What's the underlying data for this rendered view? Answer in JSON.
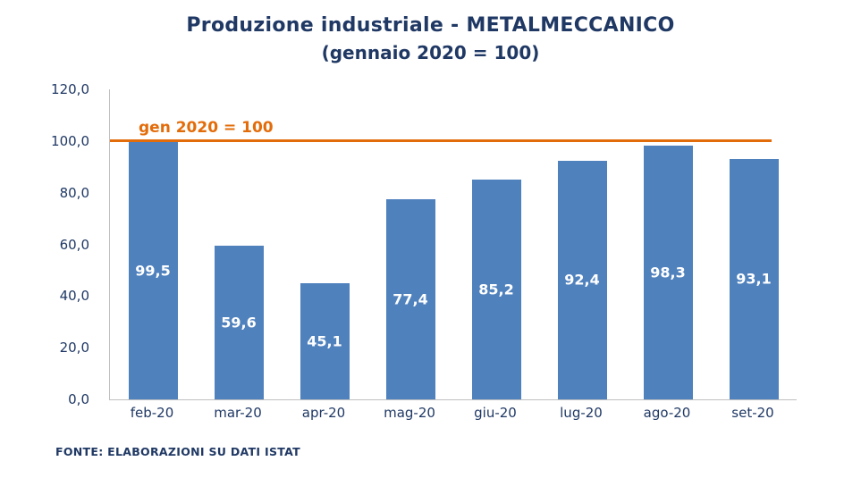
{
  "header": {
    "title": "Produzione industriale - METALMECCANICO",
    "subtitle": "(gennaio 2020 = 100)"
  },
  "chart_data": {
    "type": "bar",
    "title": "Produzione industriale - METALMECCANICO",
    "subtitle": "(gennaio 2020 = 100)",
    "categories": [
      "feb-20",
      "mar-20",
      "apr-20",
      "mag-20",
      "giu-20",
      "lug-20",
      "ago-20",
      "set-20"
    ],
    "values": [
      99.5,
      59.6,
      45.1,
      77.4,
      85.2,
      92.4,
      98.3,
      93.1
    ],
    "value_labels": [
      "99,5",
      "59,6",
      "45,1",
      "77,4",
      "85,2",
      "92,4",
      "98,3",
      "93,1"
    ],
    "xlabel": "",
    "ylabel": "",
    "ylim": [
      0,
      120
    ],
    "yticks": [
      0,
      20,
      40,
      60,
      80,
      100,
      120
    ],
    "ytick_labels": [
      "0,0",
      "20,0",
      "40,0",
      "60,0",
      "80,0",
      "100,0",
      "120,0"
    ],
    "grid": false,
    "legend": false,
    "reference_line": {
      "value": 100,
      "label": "gen 2020 = 100"
    }
  },
  "footer": {
    "source": "FONTE: ELABORAZIONI SU DATI ISTAT"
  },
  "colors": {
    "title_text": "#1f3864",
    "axis_text": "#1f3864",
    "bar_fill": "#4f81bd",
    "bar_value_text": "#ffffff",
    "reference_line": "#e36c0a"
  }
}
